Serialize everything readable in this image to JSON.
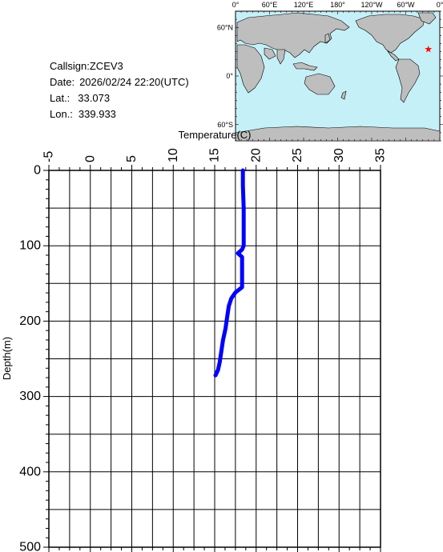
{
  "info": {
    "callsign_label": "Callsign:",
    "callsign": "ZCEV3",
    "date_label": "Date:",
    "date": "2026/02/24 22:20(UTC)",
    "lat_label": "Lat.:",
    "lat": "33.073",
    "lon_label": "Lon.:",
    "lon": "339.933"
  },
  "map": {
    "lon_labels": [
      "0°",
      "60°E",
      "120°E",
      "180°",
      "120°W",
      "60°W",
      "0°"
    ],
    "lat_labels": [
      "60°N",
      "0°",
      "60°S"
    ],
    "ocean_color": "#c6f0f8",
    "land_color": "#bebebe",
    "marker": {
      "lat": 33.073,
      "lon": 339.933,
      "symbol": "star-icon",
      "color": "#ff0000"
    }
  },
  "chart_data": {
    "type": "line",
    "xlabel": "Temperature(C)",
    "ylabel": "Depth(m)",
    "xlim": [
      -5,
      35
    ],
    "ylim": [
      0,
      500
    ],
    "y_inverted": true,
    "x_axis_position": "top",
    "x_ticks": [
      -5,
      0,
      5,
      10,
      15,
      20,
      25,
      30,
      35
    ],
    "y_ticks": [
      0,
      100,
      200,
      300,
      400,
      500
    ],
    "grid": true,
    "series": [
      {
        "color": "#0000ff",
        "points": [
          {
            "x": 18.4,
            "y": 0
          },
          {
            "x": 18.4,
            "y": 20
          },
          {
            "x": 18.5,
            "y": 50
          },
          {
            "x": 18.5,
            "y": 80
          },
          {
            "x": 18.5,
            "y": 100
          },
          {
            "x": 18.3,
            "y": 105
          },
          {
            "x": 17.8,
            "y": 110
          },
          {
            "x": 18.3,
            "y": 115
          },
          {
            "x": 18.3,
            "y": 130
          },
          {
            "x": 18.3,
            "y": 155
          },
          {
            "x": 17.5,
            "y": 162
          },
          {
            "x": 17.0,
            "y": 170
          },
          {
            "x": 16.7,
            "y": 180
          },
          {
            "x": 16.5,
            "y": 195
          },
          {
            "x": 16.3,
            "y": 210
          },
          {
            "x": 16.0,
            "y": 225
          },
          {
            "x": 15.8,
            "y": 240
          },
          {
            "x": 15.6,
            "y": 255
          },
          {
            "x": 15.4,
            "y": 265
          },
          {
            "x": 15.1,
            "y": 272
          }
        ]
      }
    ]
  }
}
